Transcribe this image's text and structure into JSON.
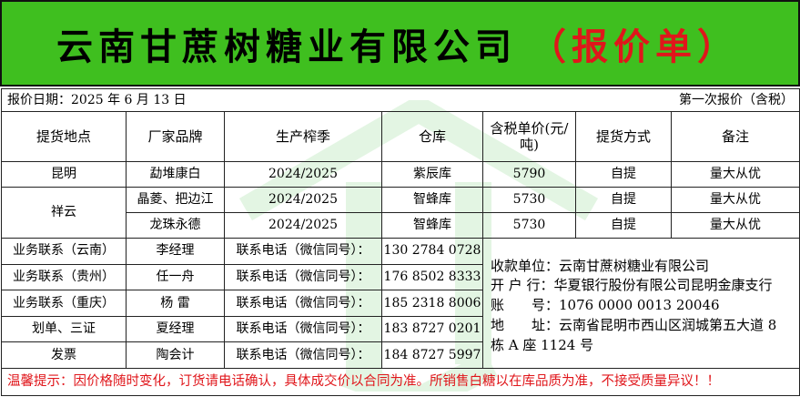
{
  "title": {
    "company": "云南甘蔗树糖业有限公司",
    "doc": "（报价单）"
  },
  "date_label": "报价日期：2025 年 6 月 13 日",
  "quote_note": "第一次报价（含税）",
  "headers": [
    "提货地点",
    "厂家品牌",
    "生产榨季",
    "仓库",
    "含税单价(元/吨)",
    "提货方式",
    "备注"
  ],
  "rows": [
    {
      "location": "昆明",
      "brand": "勐堆康白",
      "season": "2024/2025",
      "warehouse": "紫辰库",
      "price": "5790",
      "method": "自提",
      "remark": "量大从优"
    },
    {
      "location": "祥云",
      "brand": "晶菱、把边江",
      "season": "2024/2025",
      "warehouse": "智蜂库",
      "price": "5730",
      "method": "自提",
      "remark": "量大从优"
    },
    {
      "brand": "龙珠永德",
      "season": "2024/2025",
      "warehouse": "智蜂库",
      "price": "5730",
      "method": "自提",
      "remark": "量大从优"
    }
  ],
  "contacts": [
    {
      "role": "业务联系（云南）",
      "name": "李经理",
      "label": "联系电话（微信同号）：",
      "phone": "130 2784 0728"
    },
    {
      "role": "业务联系（贵州）",
      "name": "任一舟",
      "label": "联系电话（微信同号）：",
      "phone": "176 8502 8333"
    },
    {
      "role": "业务联系（重庆）",
      "name": "杨 雷",
      "label": "联系电话（微信同号）：",
      "phone": "185 2318 8006"
    },
    {
      "role": "划单、三证",
      "name": "夏经理",
      "label": "联系电话（微信同号）：",
      "phone": "183 8727 0201"
    },
    {
      "role": "发票",
      "name": "陶会计",
      "label": "联系电话（微信同号）：",
      "phone": "184 8727 5997"
    }
  ],
  "bank": {
    "payee": "收款单位：云南甘蔗树糖业有限公司",
    "bank": "开 户 行：华夏银行股份有限公司昆明金康支行",
    "account": "账　　号：1076 0000 0013 20046",
    "address": "地　　址：云南省昆明市西山区润城第五大道 8 栋 A 座 1124 号"
  },
  "warning": "温馨提示：因价格随时变化，订货请电话确认，具体成交价以合同为准。所销售白糖以在库品质为准，不接受质量异议！！",
  "colors": {
    "title_bg": "#3fbf1f",
    "accent_red": "#e0161b"
  }
}
